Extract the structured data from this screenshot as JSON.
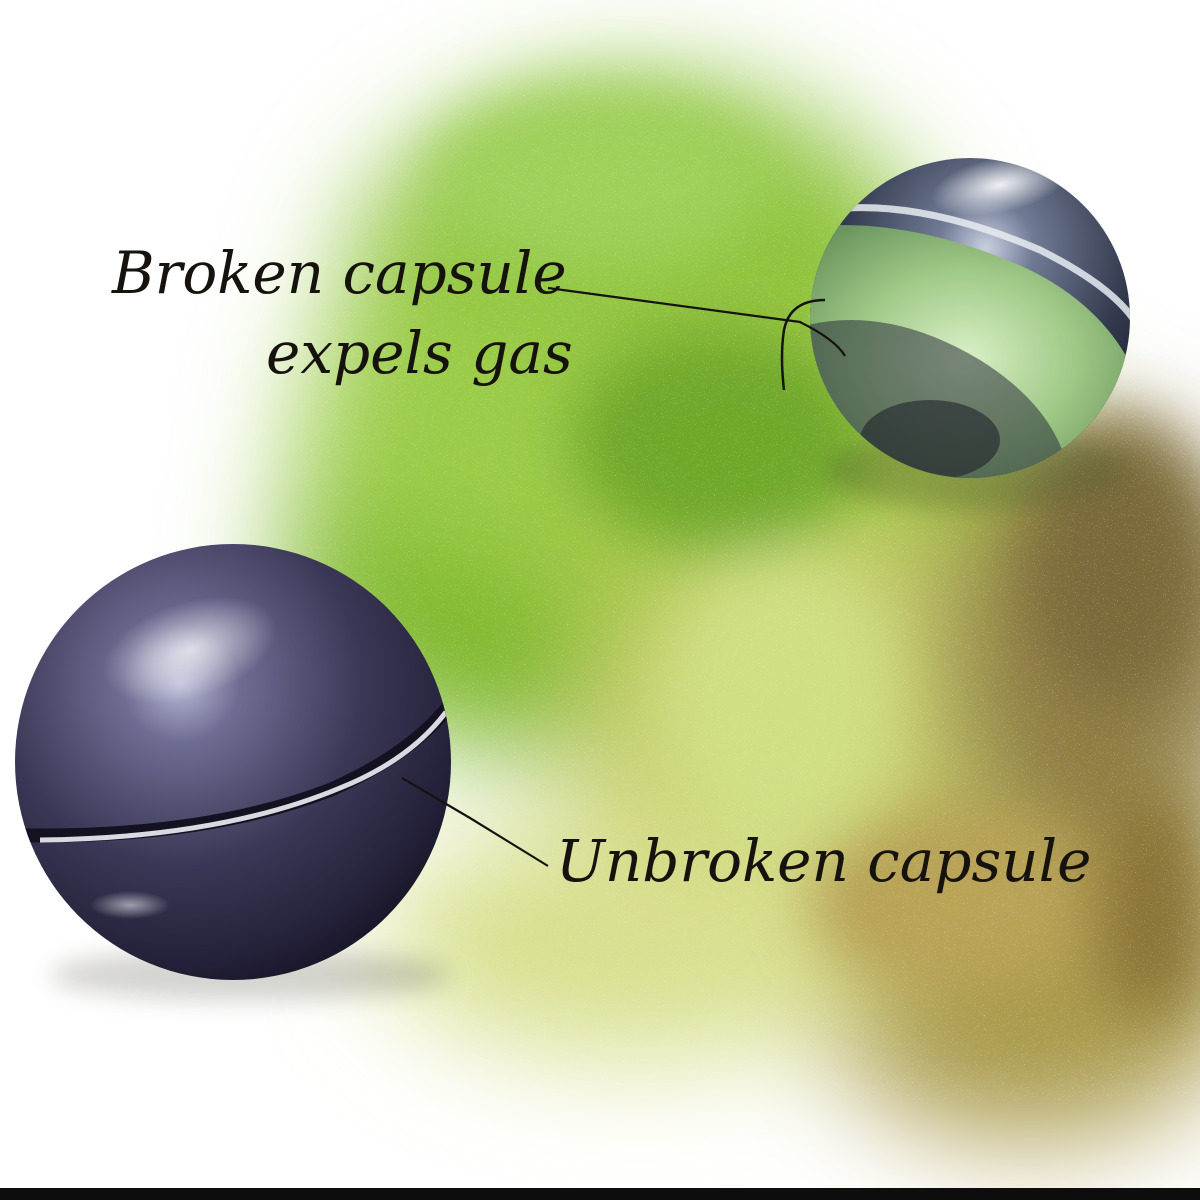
{
  "labels": {
    "broken_line1": "Broken capsule",
    "broken_line2": "expels gas",
    "unbroken": "Unbroken capsule"
  },
  "colors": {
    "background": "#ffffff",
    "gas_green": "#8cc43a",
    "gas_olive": "#9a8a3c",
    "capsule_dark": "#33304a",
    "text": "#16130f"
  }
}
